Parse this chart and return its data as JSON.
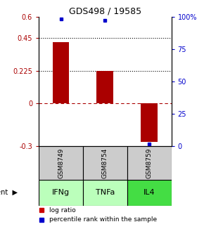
{
  "title": "GDS498 / 19585",
  "samples": [
    "GSM8749",
    "GSM8754",
    "GSM8759"
  ],
  "agents": [
    "IFNg",
    "TNFa",
    "IL4"
  ],
  "log_ratios": [
    0.42,
    0.225,
    -0.27
  ],
  "percentile_ranks": [
    98,
    97,
    2
  ],
  "bar_color": "#aa0000",
  "dot_color": "#0000cc",
  "ylim_left": [
    -0.3,
    0.6
  ],
  "yticks_left": [
    -0.3,
    0,
    0.225,
    0.45,
    0.6
  ],
  "ytick_labels_left": [
    "-0.3",
    "0",
    "0.225",
    "0.45",
    "0.6"
  ],
  "ylim_right": [
    0,
    100
  ],
  "yticks_right": [
    0,
    25,
    50,
    75,
    100
  ],
  "ytick_labels_right": [
    "0",
    "25",
    "50",
    "75",
    "100%"
  ],
  "hlines": [
    0.225,
    0.45
  ],
  "zero_line": 0,
  "agent_colors": [
    "#bbffbb",
    "#bbffbb",
    "#44dd44"
  ],
  "sample_bg": "#cccccc",
  "legend_items": [
    "log ratio",
    "percentile rank within the sample"
  ],
  "legend_colors": [
    "#cc0000",
    "#0000cc"
  ]
}
